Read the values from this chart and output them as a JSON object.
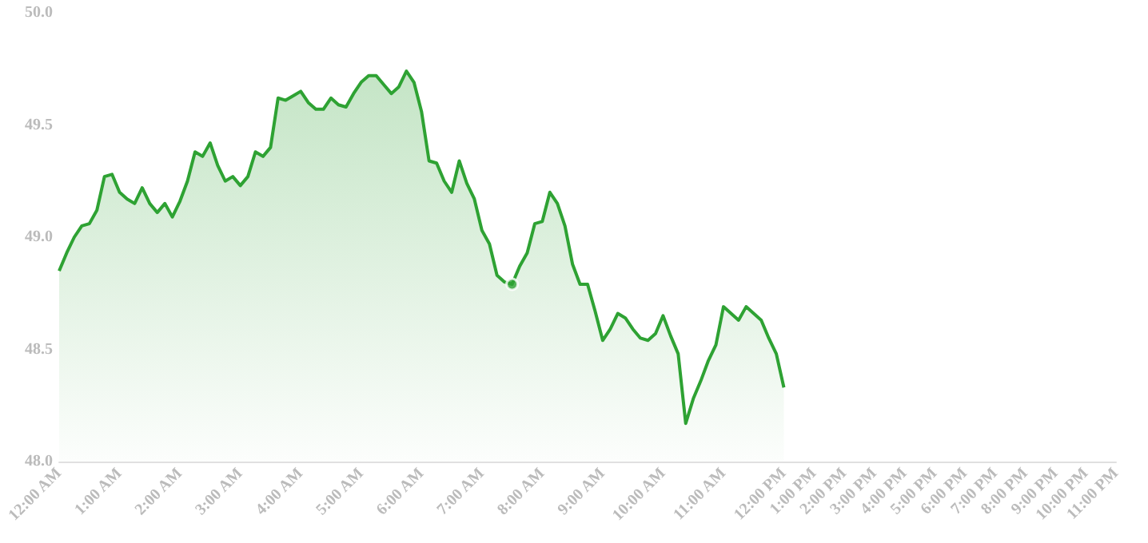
{
  "chart_data": {
    "type": "area",
    "categories": [
      "12:00 AM",
      null,
      null,
      null,
      null,
      null,
      null,
      null,
      "1:00 AM",
      null,
      null,
      null,
      null,
      null,
      null,
      null,
      "2:00 AM",
      null,
      null,
      null,
      null,
      null,
      null,
      null,
      "3:00 AM",
      null,
      null,
      null,
      null,
      null,
      null,
      null,
      "4:00 AM",
      null,
      null,
      null,
      null,
      null,
      null,
      null,
      "5:00 AM",
      null,
      null,
      null,
      null,
      null,
      null,
      null,
      "6:00 AM",
      null,
      null,
      null,
      null,
      null,
      null,
      null,
      "7:00 AM",
      null,
      null,
      null,
      null,
      null,
      null,
      null,
      "8:00 AM",
      null,
      null,
      null,
      null,
      null,
      null,
      null,
      "9:00 AM",
      null,
      null,
      null,
      null,
      null,
      null,
      null,
      "10:00 AM",
      null,
      null,
      null,
      null,
      null,
      null,
      null,
      "11:00 AM",
      null,
      null,
      null,
      null,
      null,
      null,
      null,
      "12:00 PM",
      null,
      null,
      null,
      "1:00 PM",
      null,
      null,
      null,
      "2:00 PM",
      null,
      null,
      null,
      "3:00 PM",
      null,
      null,
      null,
      "4:00 PM",
      null,
      null,
      null,
      "5:00 PM",
      null,
      null,
      null,
      "6:00 PM",
      null,
      null,
      null,
      "7:00 PM",
      null,
      null,
      null,
      "8:00 PM",
      null,
      null,
      null,
      "9:00 PM",
      null,
      null,
      null,
      "10:00 PM",
      null,
      null,
      null,
      "11:00 PM"
    ],
    "series": [
      {
        "type": "area",
        "color": "#2ea233",
        "values": [
          48.85,
          48.93,
          49.0,
          49.05,
          49.06,
          49.12,
          49.27,
          49.28,
          49.2,
          49.17,
          49.15,
          49.22,
          49.15,
          49.11,
          49.15,
          49.09,
          49.16,
          49.25,
          49.38,
          49.36,
          49.42,
          49.32,
          49.25,
          49.27,
          49.23,
          49.27,
          49.38,
          49.36,
          49.4,
          49.62,
          49.61,
          49.63,
          49.65,
          49.6,
          49.57,
          49.57,
          49.62,
          49.59,
          49.58,
          49.64,
          49.69,
          49.72,
          49.72,
          49.68,
          49.64,
          49.67,
          49.74,
          49.69,
          49.56,
          49.34,
          49.33,
          49.25,
          49.2,
          49.34,
          49.24,
          49.17,
          49.03,
          48.97,
          48.83,
          48.8,
          48.79,
          48.87,
          48.93,
          49.06,
          49.07,
          49.2,
          49.15,
          49.05,
          48.88,
          48.79,
          48.79,
          48.67,
          48.54,
          48.59,
          48.66,
          48.64,
          48.59,
          48.55,
          48.54,
          48.57,
          48.65,
          48.56,
          48.48,
          48.17,
          48.28,
          48.36,
          48.45,
          48.52,
          48.69,
          48.66,
          48.63,
          48.69,
          48.66,
          48.63,
          48.55,
          48.48,
          48.33,
          null,
          null,
          null,
          null,
          null,
          null,
          null,
          null,
          null,
          null,
          null,
          null,
          null,
          null,
          null,
          null,
          null,
          null,
          null,
          null,
          null,
          null,
          null,
          null,
          null,
          null,
          null,
          null,
          null,
          null,
          null,
          null,
          null,
          null,
          null,
          null,
          null,
          null,
          null,
          null,
          null,
          null,
          null,
          null
        ]
      },
      {
        "type": "scatter",
        "color": "#2ea233",
        "marker": "circle",
        "values": [
          null,
          null,
          null,
          null,
          null,
          null,
          null,
          null,
          null,
          null,
          null,
          null,
          null,
          null,
          null,
          null,
          null,
          null,
          null,
          null,
          null,
          null,
          null,
          null,
          null,
          null,
          null,
          null,
          null,
          null,
          null,
          null,
          null,
          null,
          null,
          null,
          null,
          null,
          null,
          null,
          null,
          null,
          null,
          null,
          null,
          null,
          null,
          null,
          null,
          null,
          null,
          null,
          null,
          null,
          null,
          null,
          null,
          null,
          null,
          null,
          48.79,
          null,
          null,
          null,
          null,
          null,
          null,
          null,
          null,
          null,
          null,
          null,
          null,
          null,
          null,
          null,
          null,
          null,
          null,
          null,
          null,
          null,
          null,
          null,
          null,
          null,
          null,
          null,
          null,
          null,
          null,
          null,
          null,
          null,
          null,
          null,
          null,
          null,
          null,
          null,
          null,
          null,
          null,
          null,
          null,
          null,
          null,
          null,
          null,
          null,
          null,
          null,
          null,
          null,
          null,
          null,
          null,
          null,
          null,
          null,
          null,
          null,
          null,
          null,
          null,
          null,
          null,
          null,
          null,
          null,
          null,
          null,
          null,
          null,
          null,
          null,
          null,
          null,
          null,
          null,
          null
        ]
      }
    ],
    "ylim": [
      48.0,
      50.0
    ],
    "yticks": [
      {
        "value": 48,
        "label": "48.0"
      },
      {
        "value": 48.5,
        "label": "48.5"
      },
      {
        "value": 49,
        "label": "49.0"
      },
      {
        "value": 49.5,
        "label": "49.5"
      },
      {
        "value": 50,
        "label": "50.0"
      }
    ],
    "grid": false
  }
}
